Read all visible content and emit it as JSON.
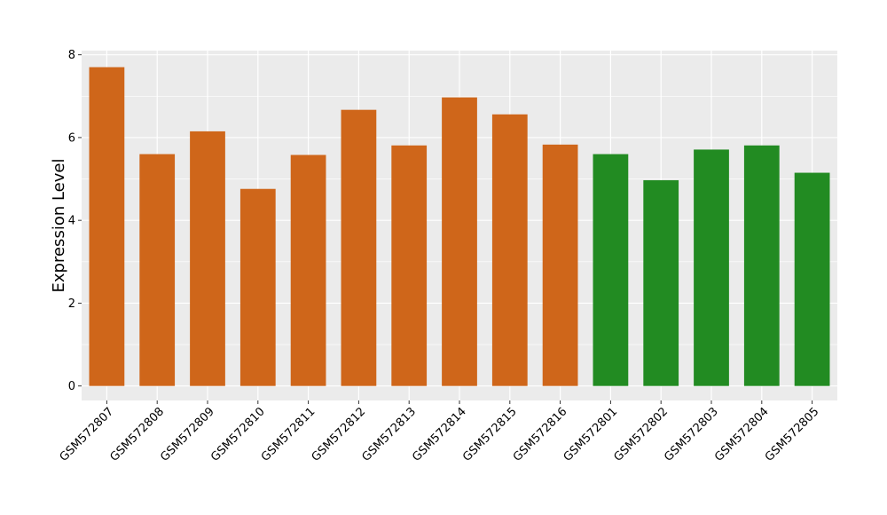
{
  "chart_data": {
    "type": "bar",
    "title": "",
    "xlabel": "",
    "ylabel": "Expression Level",
    "ylim": [
      -0.35,
      8.1
    ],
    "yticks": [
      0,
      2,
      4,
      6,
      8
    ],
    "grid": true,
    "legend": "none",
    "colors": {
      "group_a": "#CF661A",
      "group_b": "#228B22",
      "panel_bg": "#EBEBEB",
      "grid": "#FFFFFF"
    },
    "categories": [
      "GSM572807",
      "GSM572808",
      "GSM572809",
      "GSM572810",
      "GSM572811",
      "GSM572812",
      "GSM572813",
      "GSM572814",
      "GSM572815",
      "GSM572816",
      "GSM572801",
      "GSM572802",
      "GSM572803",
      "GSM572804",
      "GSM572805"
    ],
    "values": [
      7.7,
      5.6,
      6.15,
      4.76,
      5.58,
      6.67,
      5.81,
      6.97,
      6.56,
      5.83,
      5.6,
      4.97,
      5.71,
      5.81,
      5.15
    ],
    "groups": [
      "a",
      "a",
      "a",
      "a",
      "a",
      "a",
      "a",
      "a",
      "a",
      "a",
      "b",
      "b",
      "b",
      "b",
      "b"
    ]
  }
}
